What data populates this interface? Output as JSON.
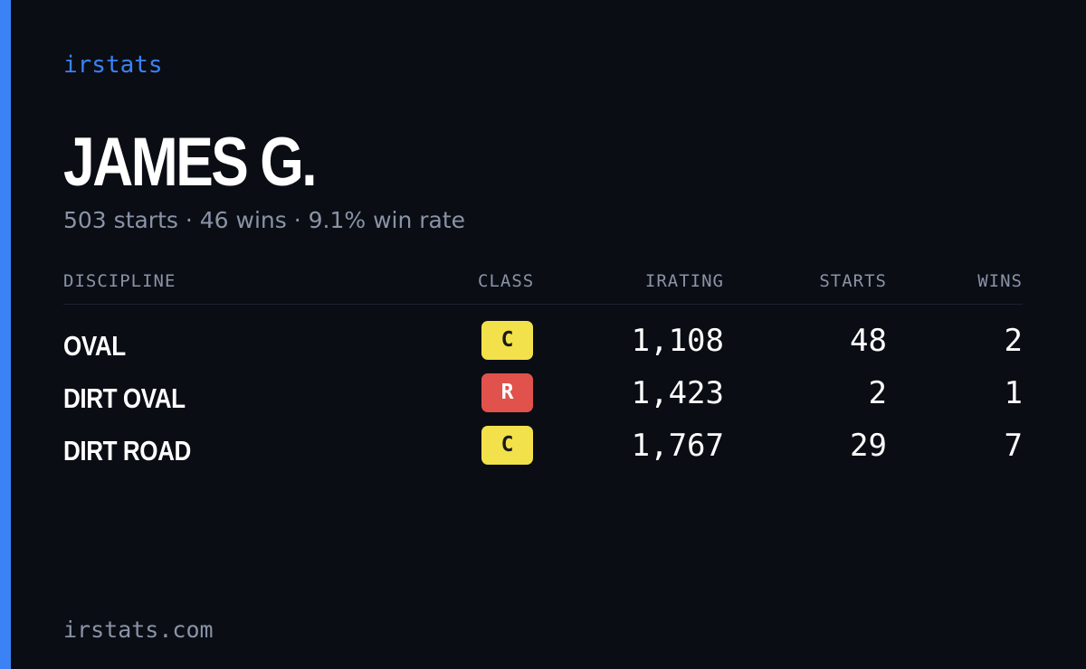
{
  "brand": "irstats",
  "driver": {
    "name": "JAMES G.",
    "summary": "503 starts · 46 wins · 9.1% win rate"
  },
  "table": {
    "headers": {
      "discipline": "DISCIPLINE",
      "class": "CLASS",
      "irating": "IRATING",
      "starts": "STARTS",
      "wins": "WINS"
    },
    "rows": [
      {
        "discipline": "OVAL",
        "class": "C",
        "class_color": "#f2e14a",
        "class_text": "#1a1a1a",
        "irating": "1,108",
        "starts": "48",
        "wins": "2"
      },
      {
        "discipline": "DIRT OVAL",
        "class": "R",
        "class_color": "#e0524b",
        "class_text": "#ffffff",
        "irating": "1,423",
        "starts": "2",
        "wins": "1"
      },
      {
        "discipline": "DIRT ROAD",
        "class": "C",
        "class_color": "#f2e14a",
        "class_text": "#1a1a1a",
        "irating": "1,767",
        "starts": "29",
        "wins": "7"
      }
    ]
  },
  "footer": "irstats.com",
  "colors": {
    "accent": "#3b82f6",
    "background": "#0a0d14",
    "muted": "#8a93a6"
  }
}
